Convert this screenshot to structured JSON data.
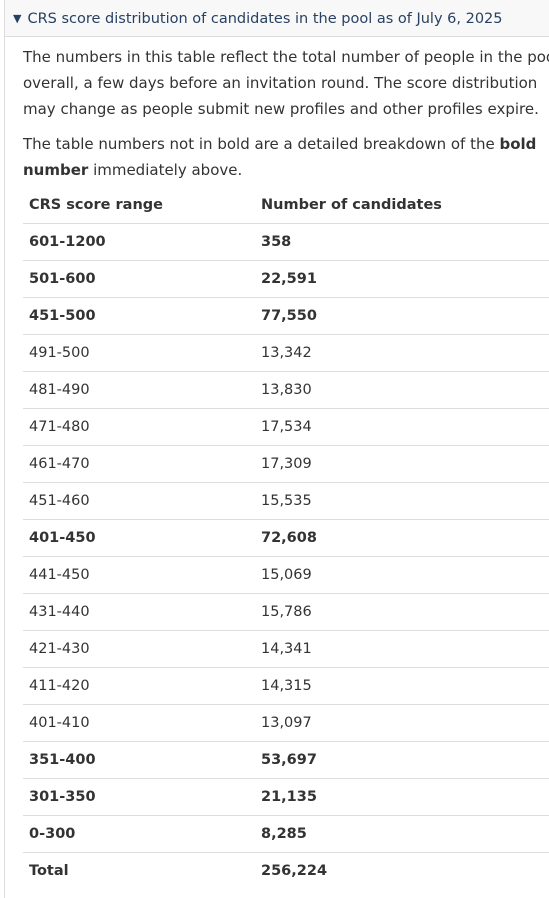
{
  "summary": {
    "caret": "▼",
    "title": "CRS score distribution of candidates in the pool as of July 6, 2025"
  },
  "paragraphs": {
    "p1_line1": "The numbers in this table reflect the total number of people in the pool",
    "p1_line2": "overall, a few days before an invitation round. The score distribution",
    "p1_line3": "may change as people submit new profiles and other profiles expire.",
    "p2_line1_pre": "The table numbers not in bold are a detailed breakdown of the ",
    "p2_line1_bold": "bold",
    "p2_line2_bold": "number",
    "p2_line2_post": " immediately above."
  },
  "table": {
    "headers": [
      "CRS score range",
      "Number of candidates"
    ],
    "rows": [
      {
        "range": "601-1200",
        "count": "358",
        "bold": true
      },
      {
        "range": "501-600",
        "count": "22,591",
        "bold": true
      },
      {
        "range": "451-500",
        "count": "77,550",
        "bold": true
      },
      {
        "range": "491-500",
        "count": "13,342",
        "bold": false
      },
      {
        "range": "481-490",
        "count": "13,830",
        "bold": false
      },
      {
        "range": "471-480",
        "count": "17,534",
        "bold": false
      },
      {
        "range": "461-470",
        "count": "17,309",
        "bold": false
      },
      {
        "range": "451-460",
        "count": "15,535",
        "bold": false
      },
      {
        "range": "401-450",
        "count": "72,608",
        "bold": true
      },
      {
        "range": "441-450",
        "count": "15,069",
        "bold": false
      },
      {
        "range": "431-440",
        "count": "15,786",
        "bold": false
      },
      {
        "range": "421-430",
        "count": "14,341",
        "bold": false
      },
      {
        "range": "411-420",
        "count": "14,315",
        "bold": false
      },
      {
        "range": "401-410",
        "count": "13,097",
        "bold": false
      },
      {
        "range": "351-400",
        "count": "53,697",
        "bold": true
      },
      {
        "range": "301-350",
        "count": "21,135",
        "bold": true
      },
      {
        "range": "0-300",
        "count": "8,285",
        "bold": true
      },
      {
        "range": "Total",
        "count": "256,224",
        "bold": true
      }
    ]
  }
}
